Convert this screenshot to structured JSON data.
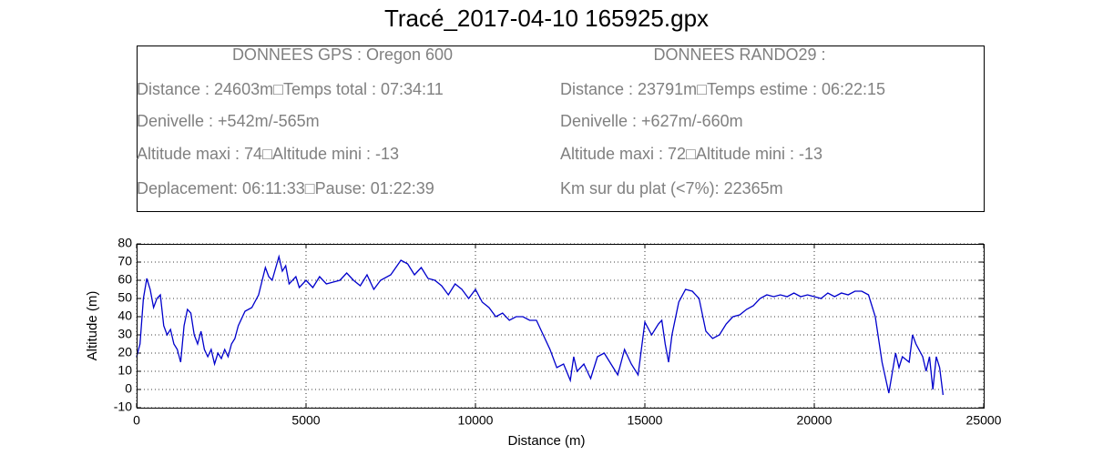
{
  "chart_data": {
    "type": "line",
    "title": "Tracé_2017-04-10 165925.gpx",
    "info_left": [
      "DONNEES GPS :  Oregon 600",
      "Distance : 24603m□Temps total : 07:34:11",
      "Denivelle : +542m/-565m",
      "Altitude maxi : 74□Altitude mini : -13",
      "Deplacement: 06:11:33□Pause: 01:22:39"
    ],
    "info_right": [
      "DONNEES RANDO29  :",
      "Distance : 23791m□Temps estime : 06:22:15",
      "Denivelle : +627m/-660m",
      "Altitude maxi : 72□Altitude mini : -13",
      "Km sur du plat  (<7%): 22365m"
    ],
    "xlabel": "Distance (m)",
    "ylabel": "Altitude (m)",
    "x": [
      0,
      100,
      200,
      300,
      400,
      500,
      600,
      700,
      800,
      900,
      1000,
      1100,
      1200,
      1300,
      1400,
      1500,
      1600,
      1700,
      1800,
      1900,
      2000,
      2100,
      2200,
      2300,
      2400,
      2500,
      2600,
      2700,
      2800,
      2900,
      3000,
      3200,
      3400,
      3600,
      3800,
      3900,
      4000,
      4200,
      4300,
      4400,
      4500,
      4700,
      4800,
      5000,
      5200,
      5400,
      5600,
      5800,
      6000,
      6200,
      6400,
      6600,
      6800,
      7000,
      7200,
      7500,
      7800,
      8000,
      8200,
      8400,
      8600,
      8800,
      9000,
      9200,
      9400,
      9600,
      9800,
      10000,
      10200,
      10400,
      10600,
      10800,
      11000,
      11200,
      11400,
      11600,
      11800,
      12000,
      12200,
      12400,
      12600,
      12800,
      12900,
      13000,
      13200,
      13400,
      13600,
      13800,
      14000,
      14200,
      14400,
      14600,
      14800,
      15000,
      15200,
      15400,
      15500,
      15600,
      15700,
      15800,
      16000,
      16200,
      16400,
      16600,
      16800,
      17000,
      17200,
      17400,
      17600,
      17800,
      18000,
      18200,
      18400,
      18600,
      18800,
      19000,
      19200,
      19400,
      19600,
      19800,
      20000,
      20200,
      20400,
      20600,
      20800,
      21000,
      21200,
      21400,
      21600,
      21800,
      22000,
      22200,
      22400,
      22500,
      22600,
      22800,
      22900,
      23000,
      23200,
      23300,
      23400,
      23500,
      23600,
      23700,
      23800
    ],
    "values": [
      18,
      25,
      50,
      61,
      55,
      45,
      50,
      52,
      35,
      30,
      33,
      25,
      22,
      15,
      35,
      44,
      42,
      30,
      25,
      32,
      22,
      18,
      22,
      14,
      20,
      17,
      22,
      18,
      25,
      28,
      35,
      43,
      45,
      52,
      67,
      62,
      60,
      73,
      65,
      68,
      58,
      62,
      56,
      60,
      56,
      62,
      58,
      59,
      60,
      64,
      60,
      57,
      63,
      55,
      60,
      63,
      71,
      69,
      63,
      67,
      61,
      60,
      57,
      52,
      58,
      55,
      50,
      55,
      48,
      45,
      40,
      42,
      38,
      40,
      40,
      38,
      38,
      30,
      22,
      12,
      14,
      5,
      18,
      10,
      14,
      6,
      18,
      20,
      14,
      8,
      22,
      14,
      8,
      37,
      30,
      36,
      38,
      25,
      15,
      30,
      48,
      55,
      54,
      50,
      32,
      28,
      30,
      36,
      40,
      41,
      44,
      46,
      50,
      52,
      51,
      52,
      51,
      53,
      51,
      52,
      51,
      50,
      53,
      51,
      53,
      52,
      54,
      54,
      52,
      40,
      15,
      -2,
      20,
      12,
      18,
      15,
      30,
      25,
      18,
      10,
      18,
      0,
      18,
      12,
      -3
    ],
    "color": "#0000cc",
    "xlim": [
      0,
      25000
    ],
    "ylim": [
      -10,
      80
    ],
    "xticks": [
      0,
      5000,
      10000,
      15000,
      20000,
      25000
    ],
    "yticks": [
      -10,
      0,
      10,
      20,
      30,
      40,
      50,
      60,
      70,
      80
    ],
    "grid": true
  }
}
